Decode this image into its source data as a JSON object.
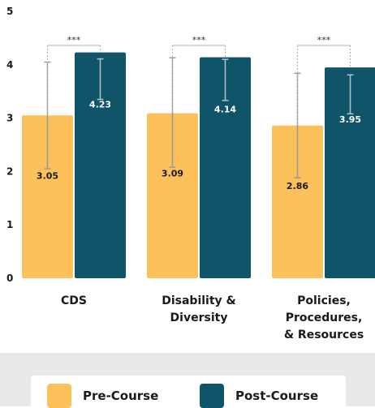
{
  "chart_data": {
    "type": "bar",
    "categories": [
      "CDS",
      "Disability & Diversity",
      "Policies, Procedures, & Resources"
    ],
    "category_lines": [
      [
        "CDS"
      ],
      [
        "Disability &",
        "Diversity"
      ],
      [
        "Policies,",
        "Procedures,",
        "& Resources"
      ]
    ],
    "series": [
      {
        "name": "Pre-Course",
        "values": [
          3.05,
          3.09,
          2.86
        ],
        "color": "#fcc15b",
        "error_low": [
          2.05,
          2.08,
          1.88
        ],
        "error_high": [
          4.05,
          4.13,
          3.84
        ]
      },
      {
        "name": "Post-Course",
        "values": [
          4.23,
          4.14,
          3.95
        ],
        "color": "#0f5468",
        "error_low": [
          3.35,
          3.33,
          3.08
        ],
        "error_high": [
          4.11,
          4.1,
          3.81
        ]
      }
    ],
    "significance": [
      "***",
      "***",
      "***"
    ],
    "yticks": [
      0,
      1,
      2,
      3,
      4,
      5
    ],
    "ylim": [
      0,
      5
    ],
    "grid": false,
    "legend_position": "bottom"
  }
}
